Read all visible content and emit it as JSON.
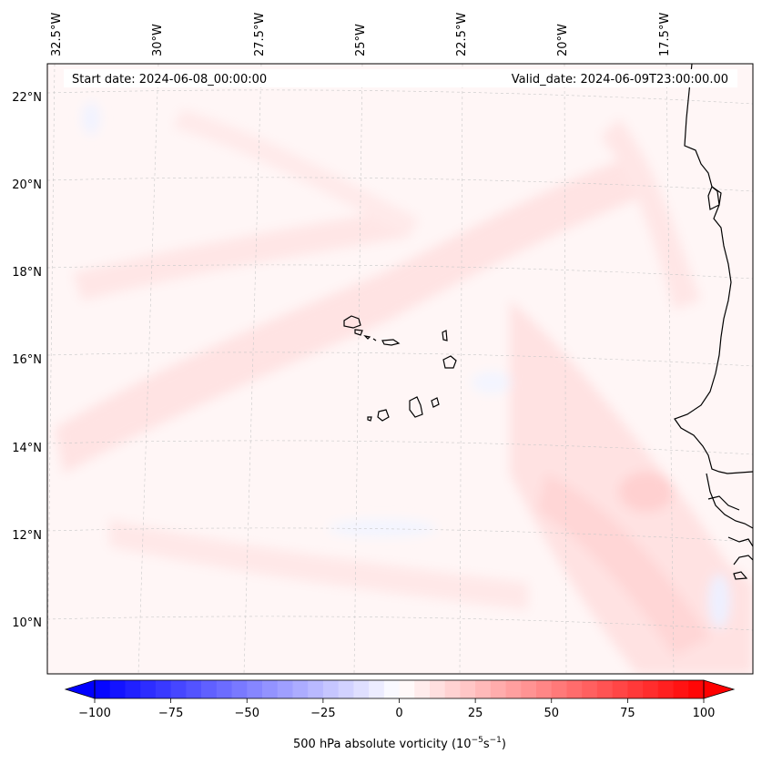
{
  "header": {
    "start_date": "Start date: 2024-06-08_00:00:00",
    "valid_date": "Valid_date: 2024-06-09T23:00:00.00"
  },
  "map": {
    "lon_labels": [
      "32.5°W",
      "30°W",
      "27.5°W",
      "25°W",
      "22.5°W",
      "20°W",
      "17.5°W"
    ],
    "lat_labels": [
      "22°N",
      "20°N",
      "18°N",
      "16°N",
      "14°N",
      "12°N",
      "10°N"
    ]
  },
  "colorbar": {
    "label": "500 hPa absolute vorticity (10",
    "label_exp1": "−5",
    "label_mid": "s",
    "label_exp2": "−1",
    "label_end": ")",
    "ticks": [
      "−100",
      "−75",
      "−50",
      "−25",
      "0",
      "25",
      "50",
      "75",
      "100"
    ],
    "tick_values": [
      -100,
      -75,
      -50,
      -25,
      0,
      25,
      50,
      75,
      100
    ],
    "range": [
      -100,
      100
    ],
    "extend": "both",
    "colors": {
      "min": "#0000ff",
      "mid": "#ffffff",
      "max": "#ff0000"
    }
  }
}
